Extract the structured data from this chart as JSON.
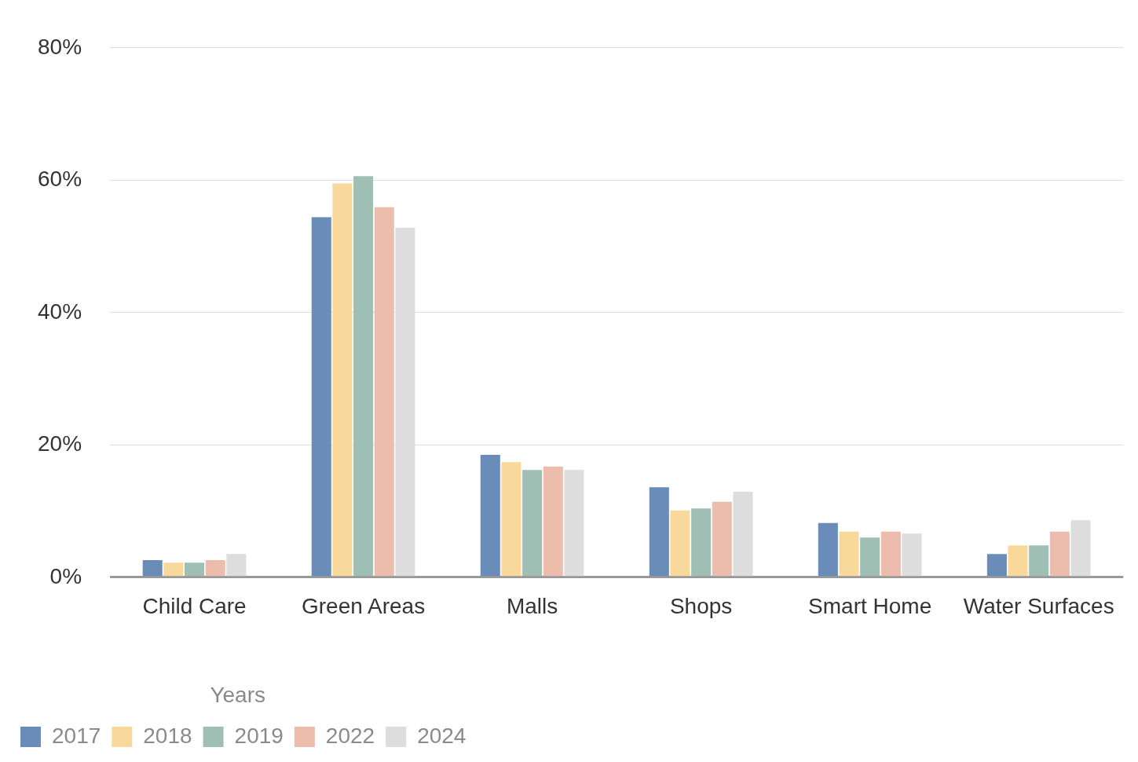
{
  "chart_data": {
    "type": "bar",
    "categories": [
      "Child Care",
      "Green Areas",
      "Malls",
      "Shops",
      "Smart Home",
      "Water Surfaces"
    ],
    "series": [
      {
        "name": "2017",
        "color": "#6a8cb8",
        "values": [
          2.6,
          54.4,
          18.5,
          13.6,
          8.2,
          3.5
        ]
      },
      {
        "name": "2018",
        "color": "#f8d99b",
        "values": [
          2.2,
          59.5,
          17.4,
          10.1,
          6.9,
          4.8
        ]
      },
      {
        "name": "2019",
        "color": "#9fbfb4",
        "values": [
          2.2,
          60.6,
          16.2,
          10.4,
          6.0,
          4.8
        ]
      },
      {
        "name": "2022",
        "color": "#ecbcac",
        "values": [
          2.6,
          55.9,
          16.7,
          11.4,
          6.9,
          6.9
        ]
      },
      {
        "name": "2024",
        "color": "#dddddd",
        "values": [
          3.5,
          52.8,
          16.2,
          12.9,
          6.6,
          8.6
        ]
      }
    ],
    "legend_title": "Years",
    "ylim": [
      0,
      80
    ],
    "yticks": [
      {
        "value": 0,
        "label": "0%"
      },
      {
        "value": 20,
        "label": "20%"
      },
      {
        "value": 40,
        "label": "40%"
      },
      {
        "value": 60,
        "label": "60%"
      },
      {
        "value": 80,
        "label": "80%"
      }
    ],
    "grid": "y",
    "legend": "bottom left"
  }
}
